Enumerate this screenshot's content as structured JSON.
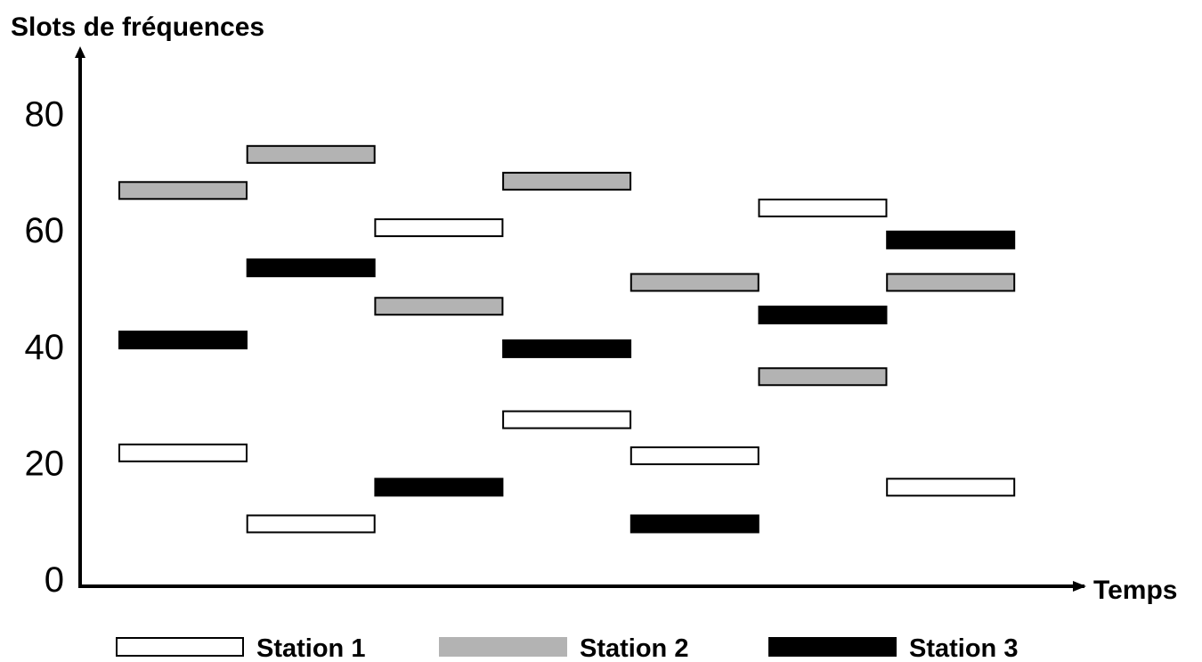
{
  "chart_data": {
    "type": "bar",
    "ylabel": "Slots de fréquences",
    "xlabel": "Temps",
    "ylim": [
      0,
      88
    ],
    "yticks": [
      0,
      20,
      40,
      60,
      80
    ],
    "time_slots": 7,
    "grid": false,
    "legend_position": "bottom",
    "series": [
      {
        "name": "Station 1",
        "fill": "#ffffff",
        "stroke": "#000000",
        "values": [
          21.7,
          9.5,
          60.4,
          27.4,
          21.2,
          63.8,
          15.8
        ]
      },
      {
        "name": "Station 2",
        "fill": "#b3b3b3",
        "stroke": "#000000",
        "values": [
          66.8,
          73.0,
          46.9,
          68.4,
          51.0,
          34.8,
          51.0
        ]
      },
      {
        "name": "Station 3",
        "fill": "#000000",
        "stroke": "#000000",
        "values": [
          41.1,
          53.5,
          15.8,
          39.6,
          9.5,
          45.4,
          58.3
        ]
      }
    ]
  }
}
